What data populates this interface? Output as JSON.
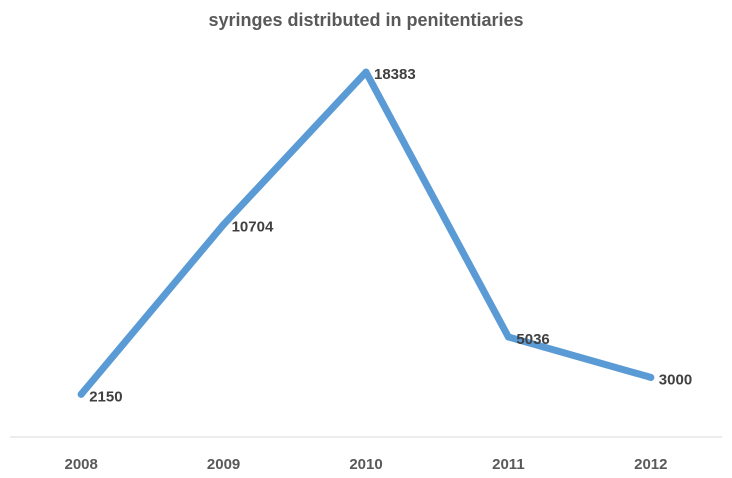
{
  "chart_data": {
    "type": "line",
    "title": "syringes distributed in penitentiaries",
    "xlabel": "",
    "ylabel": "",
    "categories": [
      "2008",
      "2009",
      "2010",
      "2011",
      "2012"
    ],
    "series": [
      {
        "values": [
          2150,
          10704,
          18383,
          5036,
          3000
        ]
      }
    ],
    "data_labels": [
      "2150",
      "10704",
      "18383",
      "5036",
      "3000"
    ],
    "ylim": [
      0,
      20000
    ],
    "grid": false,
    "legend": "none",
    "colors": {
      "line": "#5b9bd5",
      "axis": "#d9d9d9",
      "text": "#595959"
    }
  }
}
